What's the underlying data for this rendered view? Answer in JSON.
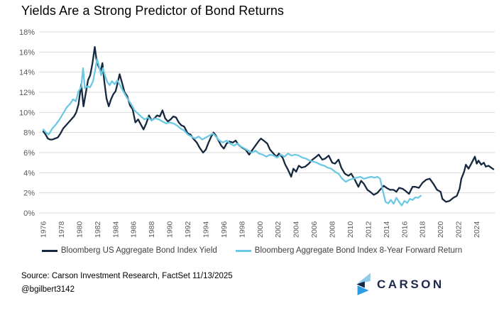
{
  "title": "Yields Are a Strong Predictor of Bond Returns",
  "footer": {
    "source_line": "Source: Carson Investment Research, FactSet 11/13/2025",
    "handle": "@bgilbert3142",
    "logo_text": "CARSON"
  },
  "colors": {
    "yield_line": "#16283F",
    "forward_return_line": "#6CC9E3",
    "gridline": "#D9D9D9",
    "tick_label": "#595959",
    "legend_text": "#404040",
    "logo_light_blue": "#8FCBEA",
    "logo_navy": "#14273F",
    "logo_blue": "#2D9CE3"
  },
  "chart_data": {
    "type": "line",
    "title": "Yields Are a Strong Predictor of Bond Returns",
    "xlabel": "",
    "ylabel": "",
    "xlim": [
      1975.7,
      2026.3
    ],
    "ylim": [
      0,
      18
    ],
    "grid": "horizontal",
    "legend_position": "bottom",
    "y_tick_values": [
      0,
      2,
      4,
      6,
      8,
      10,
      12,
      14,
      16,
      18
    ],
    "y_tick_labels": [
      "0%",
      "2%",
      "4%",
      "6%",
      "8%",
      "10%",
      "12%",
      "14%",
      "16%",
      "18%"
    ],
    "x_tick_values": [
      1976,
      1978,
      1980,
      1982,
      1984,
      1986,
      1988,
      1990,
      1992,
      1994,
      1996,
      1998,
      2000,
      2002,
      2004,
      2006,
      2008,
      2010,
      2012,
      2014,
      2016,
      2018,
      2020,
      2022,
      2024
    ],
    "series": [
      {
        "name": "Bloomberg US Aggregate Bond Index Yield",
        "color": "#16283F",
        "points": [
          [
            1976.0,
            8.1
          ],
          [
            1976.25,
            7.8
          ],
          [
            1976.5,
            7.4
          ],
          [
            1976.75,
            7.3
          ],
          [
            1977.0,
            7.3
          ],
          [
            1977.3,
            7.4
          ],
          [
            1977.6,
            7.5
          ],
          [
            1977.9,
            7.9
          ],
          [
            1978.2,
            8.4
          ],
          [
            1978.5,
            8.7
          ],
          [
            1978.8,
            9.0
          ],
          [
            1979.1,
            9.3
          ],
          [
            1979.4,
            9.6
          ],
          [
            1979.65,
            10.0
          ],
          [
            1979.9,
            10.8
          ],
          [
            1980.2,
            12.8
          ],
          [
            1980.45,
            10.6
          ],
          [
            1980.7,
            11.9
          ],
          [
            1980.95,
            13.2
          ],
          [
            1981.2,
            13.7
          ],
          [
            1981.45,
            14.9
          ],
          [
            1981.7,
            16.5
          ],
          [
            1981.9,
            15.2
          ],
          [
            1982.1,
            14.6
          ],
          [
            1982.35,
            14.1
          ],
          [
            1982.55,
            14.9
          ],
          [
            1982.75,
            13.1
          ],
          [
            1983.0,
            11.4
          ],
          [
            1983.25,
            10.6
          ],
          [
            1983.5,
            11.3
          ],
          [
            1983.75,
            11.8
          ],
          [
            1984.0,
            12.1
          ],
          [
            1984.2,
            12.8
          ],
          [
            1984.45,
            13.8
          ],
          [
            1984.7,
            13.0
          ],
          [
            1985.0,
            12.0
          ],
          [
            1985.3,
            11.6
          ],
          [
            1985.6,
            10.7
          ],
          [
            1985.9,
            10.3
          ],
          [
            1986.2,
            9.0
          ],
          [
            1986.5,
            9.3
          ],
          [
            1986.8,
            8.8
          ],
          [
            1987.1,
            8.3
          ],
          [
            1987.4,
            8.9
          ],
          [
            1987.7,
            9.7
          ],
          [
            1988.0,
            9.2
          ],
          [
            1988.3,
            9.4
          ],
          [
            1988.6,
            9.7
          ],
          [
            1988.9,
            9.6
          ],
          [
            1989.2,
            10.2
          ],
          [
            1989.5,
            9.4
          ],
          [
            1989.8,
            9.1
          ],
          [
            1990.1,
            9.3
          ],
          [
            1990.4,
            9.6
          ],
          [
            1990.7,
            9.5
          ],
          [
            1991.0,
            9.0
          ],
          [
            1991.3,
            8.7
          ],
          [
            1991.6,
            8.6
          ],
          [
            1992.0,
            7.9
          ],
          [
            1992.3,
            7.8
          ],
          [
            1992.6,
            7.4
          ],
          [
            1993.0,
            7.0
          ],
          [
            1993.3,
            6.5
          ],
          [
            1993.7,
            6.0
          ],
          [
            1994.0,
            6.3
          ],
          [
            1994.3,
            7.0
          ],
          [
            1994.6,
            7.6
          ],
          [
            1994.85,
            8.0
          ],
          [
            1995.1,
            7.7
          ],
          [
            1995.4,
            7.2
          ],
          [
            1995.7,
            6.7
          ],
          [
            1996.0,
            6.4
          ],
          [
            1996.3,
            6.9
          ],
          [
            1996.6,
            7.1
          ],
          [
            1997.0,
            7.0
          ],
          [
            1997.3,
            7.2
          ],
          [
            1997.6,
            6.8
          ],
          [
            1998.0,
            6.5
          ],
          [
            1998.4,
            6.3
          ],
          [
            1998.8,
            5.8
          ],
          [
            1999.1,
            6.2
          ],
          [
            1999.5,
            6.7
          ],
          [
            1999.9,
            7.2
          ],
          [
            2000.1,
            7.4
          ],
          [
            2000.4,
            7.2
          ],
          [
            2000.8,
            6.9
          ],
          [
            2001.1,
            6.3
          ],
          [
            2001.4,
            6.0
          ],
          [
            2001.8,
            5.6
          ],
          [
            2002.1,
            5.9
          ],
          [
            2002.5,
            5.5
          ],
          [
            2002.8,
            4.8
          ],
          [
            2003.1,
            4.3
          ],
          [
            2003.45,
            3.6
          ],
          [
            2003.7,
            4.4
          ],
          [
            2004.0,
            4.1
          ],
          [
            2004.3,
            4.7
          ],
          [
            2004.6,
            4.5
          ],
          [
            2005.0,
            4.6
          ],
          [
            2005.4,
            4.9
          ],
          [
            2005.8,
            5.3
          ],
          [
            2006.1,
            5.5
          ],
          [
            2006.5,
            5.8
          ],
          [
            2006.9,
            5.3
          ],
          [
            2007.2,
            5.4
          ],
          [
            2007.6,
            5.7
          ],
          [
            2008.0,
            5.0
          ],
          [
            2008.3,
            4.9
          ],
          [
            2008.7,
            5.3
          ],
          [
            2009.0,
            4.5
          ],
          [
            2009.4,
            3.9
          ],
          [
            2009.8,
            3.7
          ],
          [
            2010.1,
            3.9
          ],
          [
            2010.5,
            3.3
          ],
          [
            2010.9,
            2.6
          ],
          [
            2011.2,
            3.2
          ],
          [
            2011.5,
            2.9
          ],
          [
            2011.9,
            2.3
          ],
          [
            2012.2,
            2.1
          ],
          [
            2012.6,
            1.8
          ],
          [
            2013.0,
            2.0
          ],
          [
            2013.4,
            2.4
          ],
          [
            2013.7,
            2.7
          ],
          [
            2014.0,
            2.5
          ],
          [
            2014.4,
            2.3
          ],
          [
            2014.8,
            2.3
          ],
          [
            2015.1,
            2.1
          ],
          [
            2015.4,
            2.5
          ],
          [
            2015.8,
            2.4
          ],
          [
            2016.1,
            2.2
          ],
          [
            2016.5,
            1.9
          ],
          [
            2016.9,
            2.6
          ],
          [
            2017.2,
            2.6
          ],
          [
            2017.6,
            2.5
          ],
          [
            2018.0,
            3.0
          ],
          [
            2018.4,
            3.3
          ],
          [
            2018.8,
            3.4
          ],
          [
            2019.2,
            2.9
          ],
          [
            2019.6,
            2.3
          ],
          [
            2020.0,
            2.1
          ],
          [
            2020.2,
            1.4
          ],
          [
            2020.6,
            1.1
          ],
          [
            2021.0,
            1.2
          ],
          [
            2021.4,
            1.5
          ],
          [
            2021.8,
            1.7
          ],
          [
            2022.1,
            2.4
          ],
          [
            2022.3,
            3.4
          ],
          [
            2022.6,
            4.1
          ],
          [
            2022.8,
            4.8
          ],
          [
            2023.1,
            4.4
          ],
          [
            2023.4,
            4.9
          ],
          [
            2023.8,
            5.6
          ],
          [
            2024.0,
            4.9
          ],
          [
            2024.2,
            5.2
          ],
          [
            2024.5,
            4.8
          ],
          [
            2024.8,
            5.0
          ],
          [
            2025.0,
            4.6
          ],
          [
            2025.3,
            4.7
          ],
          [
            2025.6,
            4.5
          ],
          [
            2025.85,
            4.35
          ]
        ]
      },
      {
        "name": "Bloomberg Aggregate Bond Index 8-Year Forward Return",
        "color": "#6CC9E3",
        "points": [
          [
            1976.0,
            8.3
          ],
          [
            1976.3,
            8.0
          ],
          [
            1976.6,
            7.8
          ],
          [
            1977.0,
            8.4
          ],
          [
            1977.4,
            8.8
          ],
          [
            1977.8,
            9.3
          ],
          [
            1978.2,
            9.9
          ],
          [
            1978.6,
            10.5
          ],
          [
            1979.0,
            10.9
          ],
          [
            1979.3,
            11.3
          ],
          [
            1979.6,
            11.1
          ],
          [
            1979.9,
            12.1
          ],
          [
            1980.2,
            12.5
          ],
          [
            1980.4,
            14.4
          ],
          [
            1980.6,
            12.4
          ],
          [
            1980.9,
            12.6
          ],
          [
            1981.2,
            12.5
          ],
          [
            1981.5,
            13.1
          ],
          [
            1981.75,
            14.2
          ],
          [
            1981.95,
            15.3
          ],
          [
            1982.15,
            14.7
          ],
          [
            1982.4,
            13.7
          ],
          [
            1982.6,
            14.4
          ],
          [
            1982.85,
            13.6
          ],
          [
            1983.1,
            13.0
          ],
          [
            1983.35,
            12.7
          ],
          [
            1983.6,
            13.1
          ],
          [
            1983.9,
            12.8
          ],
          [
            1984.2,
            13.2
          ],
          [
            1984.5,
            12.7
          ],
          [
            1984.8,
            12.2
          ],
          [
            1985.1,
            11.7
          ],
          [
            1985.45,
            11.2
          ],
          [
            1985.8,
            10.7
          ],
          [
            1986.1,
            10.2
          ],
          [
            1986.45,
            9.9
          ],
          [
            1986.8,
            9.6
          ],
          [
            1987.2,
            9.3
          ],
          [
            1987.6,
            9.5
          ],
          [
            1988.0,
            9.2
          ],
          [
            1988.4,
            9.4
          ],
          [
            1988.8,
            9.3
          ],
          [
            1989.2,
            9.1
          ],
          [
            1989.6,
            8.9
          ],
          [
            1990.0,
            9.0
          ],
          [
            1990.4,
            8.9
          ],
          [
            1990.8,
            8.7
          ],
          [
            1991.2,
            8.4
          ],
          [
            1991.6,
            8.2
          ],
          [
            1992.0,
            7.8
          ],
          [
            1992.4,
            7.6
          ],
          [
            1992.8,
            7.4
          ],
          [
            1993.2,
            7.6
          ],
          [
            1993.6,
            7.3
          ],
          [
            1994.0,
            7.5
          ],
          [
            1994.4,
            7.7
          ],
          [
            1994.8,
            7.9
          ],
          [
            1995.1,
            7.6
          ],
          [
            1995.5,
            7.2
          ],
          [
            1995.9,
            7.0
          ],
          [
            1996.3,
            7.2
          ],
          [
            1996.7,
            6.9
          ],
          [
            1997.1,
            6.7
          ],
          [
            1997.5,
            6.9
          ],
          [
            1997.9,
            6.6
          ],
          [
            1998.3,
            6.4
          ],
          [
            1998.7,
            6.2
          ],
          [
            1999.1,
            6.0
          ],
          [
            1999.5,
            6.2
          ],
          [
            1999.9,
            5.9
          ],
          [
            2000.3,
            5.8
          ],
          [
            2000.7,
            5.6
          ],
          [
            2001.1,
            5.8
          ],
          [
            2001.5,
            5.7
          ],
          [
            2001.9,
            5.5
          ],
          [
            2002.3,
            5.8
          ],
          [
            2002.7,
            5.6
          ],
          [
            2003.1,
            5.9
          ],
          [
            2003.5,
            5.7
          ],
          [
            2003.9,
            5.8
          ],
          [
            2004.3,
            5.7
          ],
          [
            2004.7,
            5.5
          ],
          [
            2005.1,
            5.4
          ],
          [
            2005.5,
            5.2
          ],
          [
            2005.9,
            5.1
          ],
          [
            2006.3,
            5.0
          ],
          [
            2006.7,
            4.8
          ],
          [
            2007.1,
            4.7
          ],
          [
            2007.5,
            4.5
          ],
          [
            2007.9,
            4.4
          ],
          [
            2008.3,
            4.1
          ],
          [
            2008.7,
            3.9
          ],
          [
            2009.1,
            3.4
          ],
          [
            2009.5,
            3.1
          ],
          [
            2009.9,
            3.3
          ],
          [
            2010.3,
            3.4
          ],
          [
            2010.7,
            3.5
          ],
          [
            2011.1,
            3.6
          ],
          [
            2011.5,
            3.4
          ],
          [
            2011.9,
            3.5
          ],
          [
            2012.3,
            3.6
          ],
          [
            2012.7,
            3.5
          ],
          [
            2013.0,
            3.6
          ],
          [
            2013.3,
            3.4
          ],
          [
            2013.6,
            2.2
          ],
          [
            2013.9,
            1.1
          ],
          [
            2014.2,
            0.95
          ],
          [
            2014.5,
            1.3
          ],
          [
            2014.8,
            0.9
          ],
          [
            2015.1,
            1.5
          ],
          [
            2015.4,
            1.1
          ],
          [
            2015.7,
            0.75
          ],
          [
            2016.0,
            1.2
          ],
          [
            2016.3,
            1.0
          ],
          [
            2016.6,
            1.4
          ],
          [
            2016.9,
            1.3
          ],
          [
            2017.2,
            1.55
          ],
          [
            2017.5,
            1.5
          ],
          [
            2017.8,
            1.7
          ]
        ]
      }
    ]
  }
}
